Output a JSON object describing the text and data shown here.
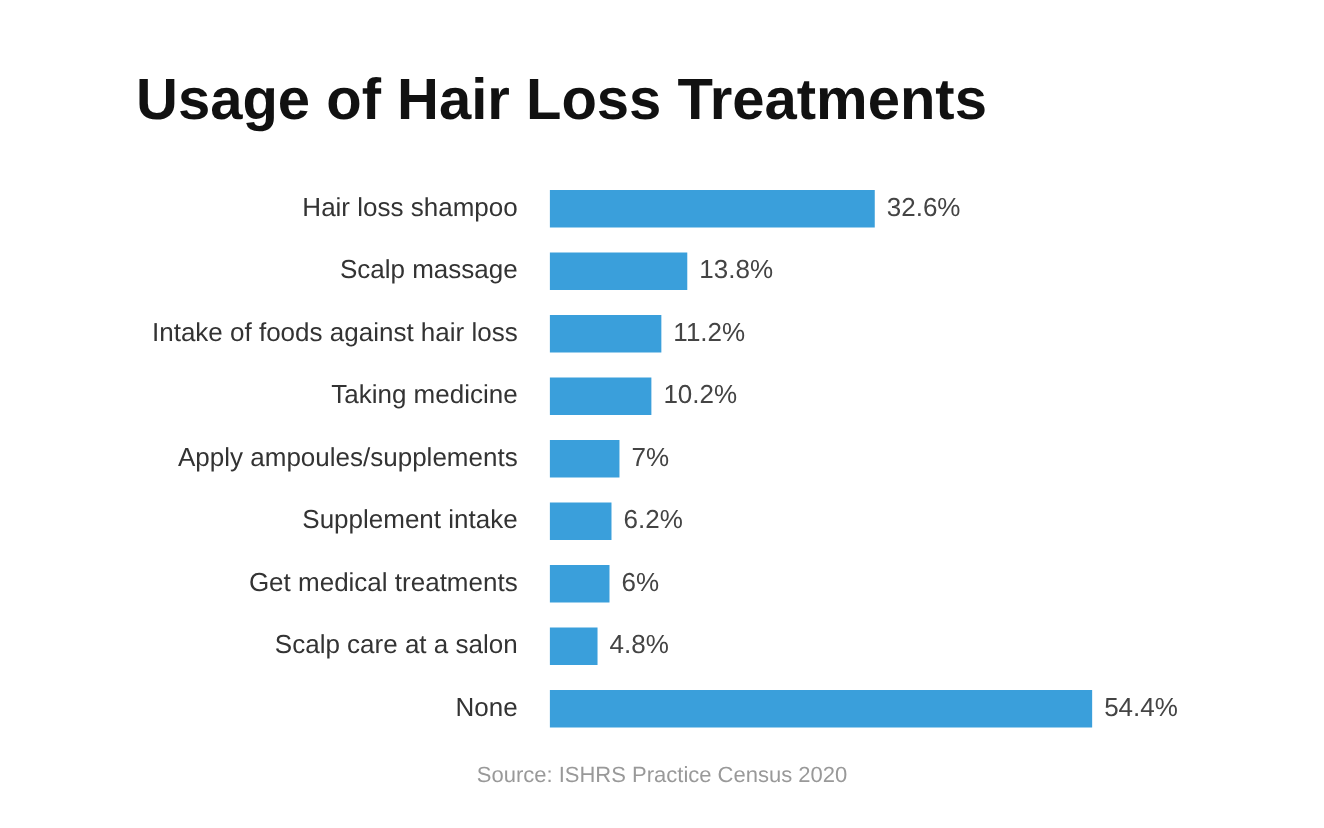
{
  "chart_data": {
    "type": "bar",
    "orientation": "horizontal",
    "title": "Usage of Hair Loss Treatments",
    "categories": [
      "Hair loss shampoo",
      "Scalp massage",
      "Intake of foods against hair loss",
      "Taking medicine",
      "Apply ampoules/supplements",
      "Supplement intake",
      "Get medical treatments",
      "Scalp care at a salon",
      "None"
    ],
    "values": [
      32.6,
      13.8,
      11.2,
      10.2,
      7,
      6.2,
      6,
      4.8,
      54.4
    ],
    "value_labels": [
      "32.6%",
      "13.8%",
      "11.2%",
      "10.2%",
      "7%",
      "6.2%",
      "6%",
      "4.8%",
      "54.4%"
    ],
    "color": "#3a9fdb",
    "legend": false,
    "annotations": [
      "Source: ISHRS Practice Census 2020"
    ]
  }
}
